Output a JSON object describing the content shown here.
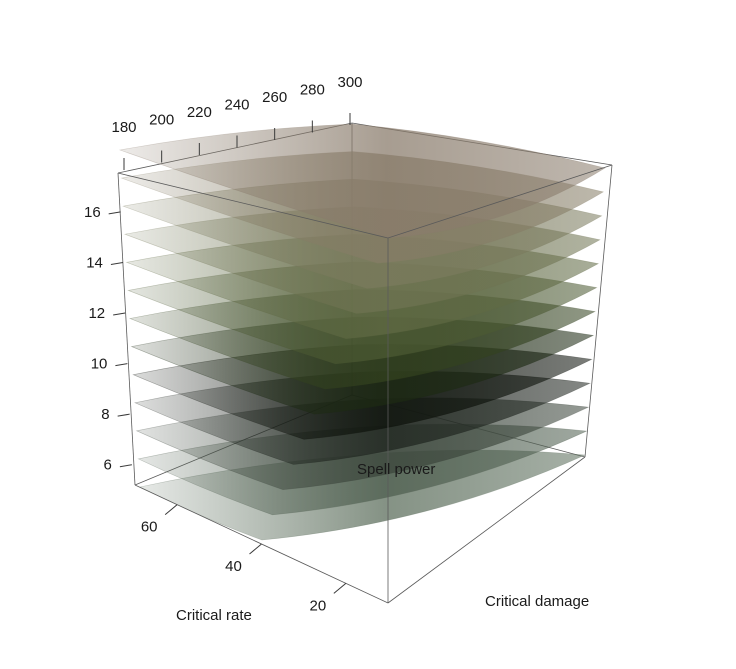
{
  "chart_data": {
    "type": "surface3d",
    "title": "",
    "x_axis": {
      "label": "Critical rate",
      "ticks": [
        20,
        40,
        60
      ],
      "range": [
        10,
        70
      ]
    },
    "y_axis": {
      "label": "Critical damage",
      "ticks": [],
      "range": [
        150,
        250
      ]
    },
    "z_axis": {
      "label": "",
      "ticks": [
        6,
        8,
        10,
        12,
        14,
        16
      ],
      "range": [
        5,
        17.5
      ]
    },
    "w_axis": {
      "label": "Spell power",
      "ticks": [
        180,
        200,
        220,
        240,
        260,
        280,
        300
      ]
    },
    "surfaces": [
      {
        "spell_power": 180,
        "color": "#5c6e5c"
      },
      {
        "spell_power": 190,
        "color": "#4f5f50"
      },
      {
        "spell_power": 200,
        "color": "#3b453b"
      },
      {
        "spell_power": 210,
        "color": "#1f251f"
      },
      {
        "spell_power": 220,
        "color": "#0d120b"
      },
      {
        "spell_power": 230,
        "color": "#1d2a13"
      },
      {
        "spell_power": 240,
        "color": "#33421f"
      },
      {
        "spell_power": 250,
        "color": "#4c5a33"
      },
      {
        "spell_power": 260,
        "color": "#606a44"
      },
      {
        "spell_power": 270,
        "color": "#6f7452"
      },
      {
        "spell_power": 280,
        "color": "#7b7b5e"
      },
      {
        "spell_power": 290,
        "color": "#867d66"
      },
      {
        "spell_power": 300,
        "color": "#8a7c6c"
      }
    ]
  }
}
